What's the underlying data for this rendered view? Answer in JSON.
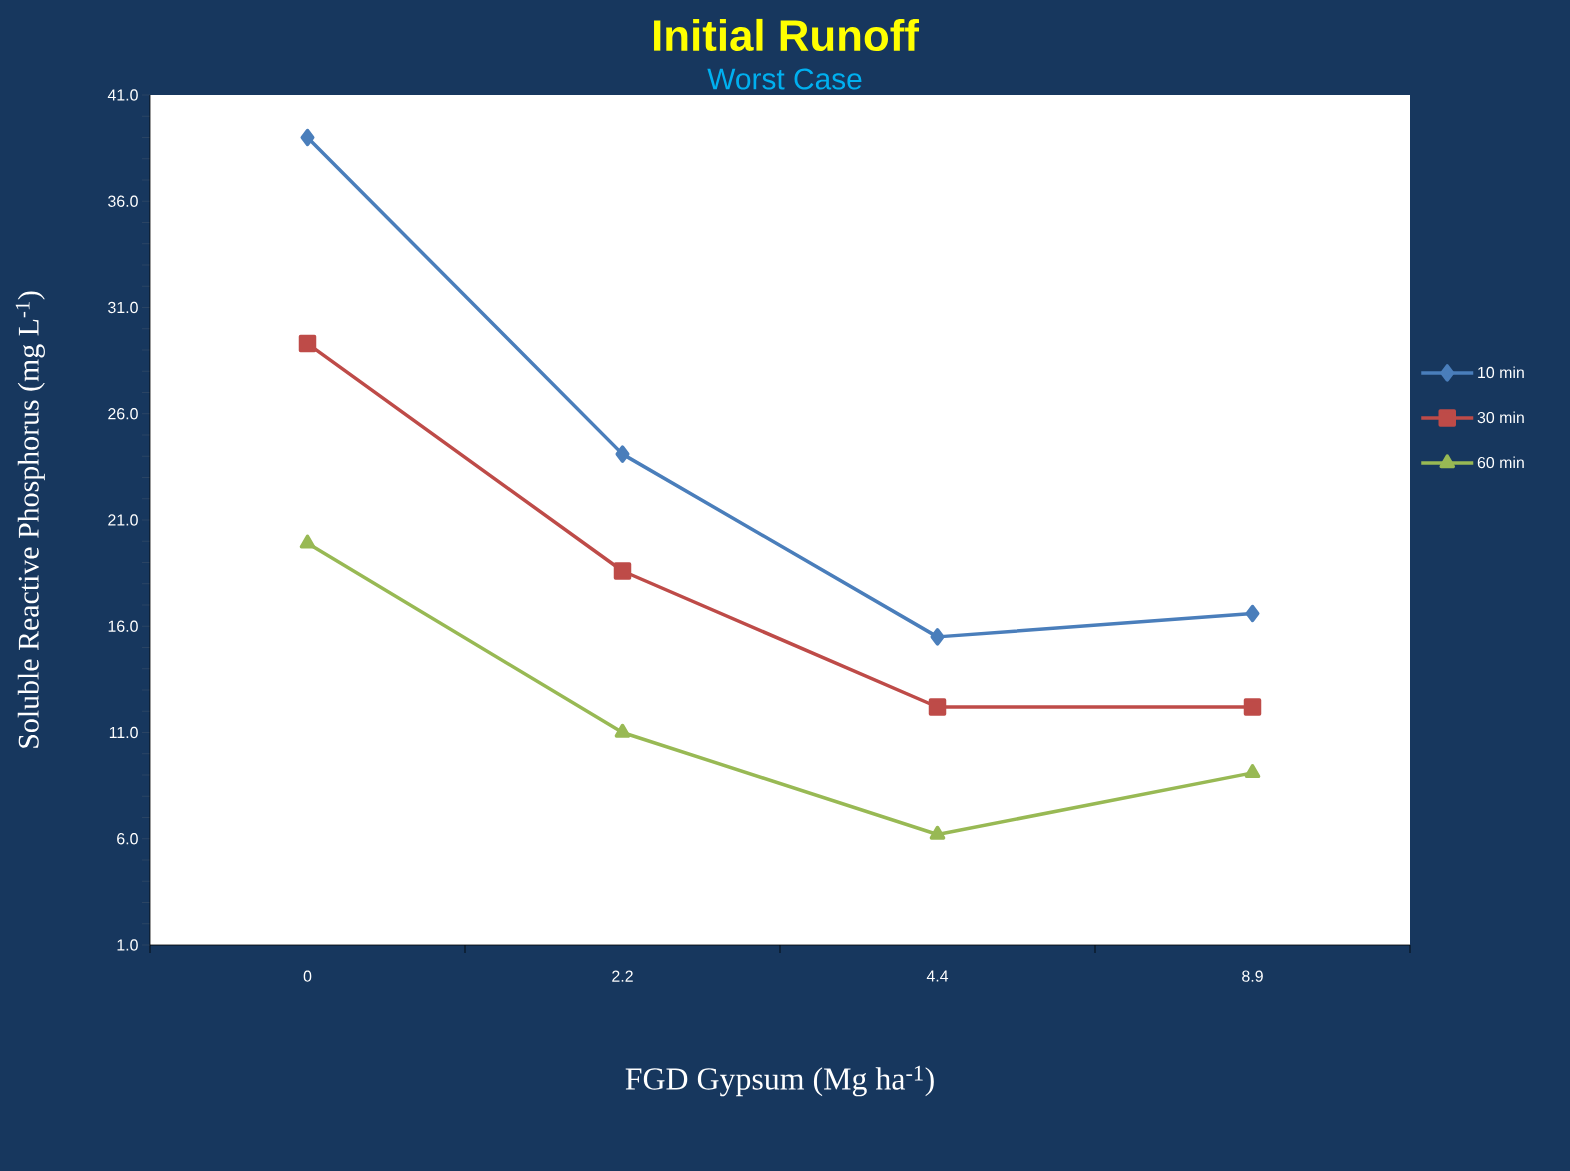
{
  "chart_data": {
    "type": "line",
    "title": "Initial Runoff",
    "subtitle": "Worst Case",
    "xlabel": "FGD Gypsum (Mg ha$^{-1}$)",
    "ylabel": "Soluble Reactive Phosphorus (mg L$^{-1}$)",
    "categories": [
      "0",
      "2.2",
      "4.4",
      "8.9"
    ],
    "series": [
      {
        "name": "10 min",
        "color": "#4a7ebb",
        "marker": "diamond",
        "values": [
          39.0,
          24.1,
          15.5,
          16.6
        ]
      },
      {
        "name": "30 min",
        "color": "#be4b48",
        "marker": "square",
        "values": [
          29.3,
          18.6,
          12.2,
          12.2
        ]
      },
      {
        "name": "60 min",
        "color": "#98b954",
        "marker": "triangle",
        "values": [
          19.9,
          11.0,
          6.2,
          9.1
        ]
      }
    ],
    "ylim": [
      1,
      41
    ],
    "yticks": [
      {
        "value": 1,
        "label": "1.0"
      },
      {
        "value": 6,
        "label": "6.0"
      },
      {
        "value": 11,
        "label": "11.0"
      },
      {
        "value": 16,
        "label": "16.0"
      },
      {
        "value": 21,
        "label": "21.0"
      },
      {
        "value": 26,
        "label": "26.0"
      },
      {
        "value": 31,
        "label": "31.0"
      },
      {
        "value": 36,
        "label": "36.0"
      },
      {
        "value": 41,
        "label": "41.0"
      }
    ],
    "grid": false,
    "legend": "right",
    "line_style": "solid"
  }
}
